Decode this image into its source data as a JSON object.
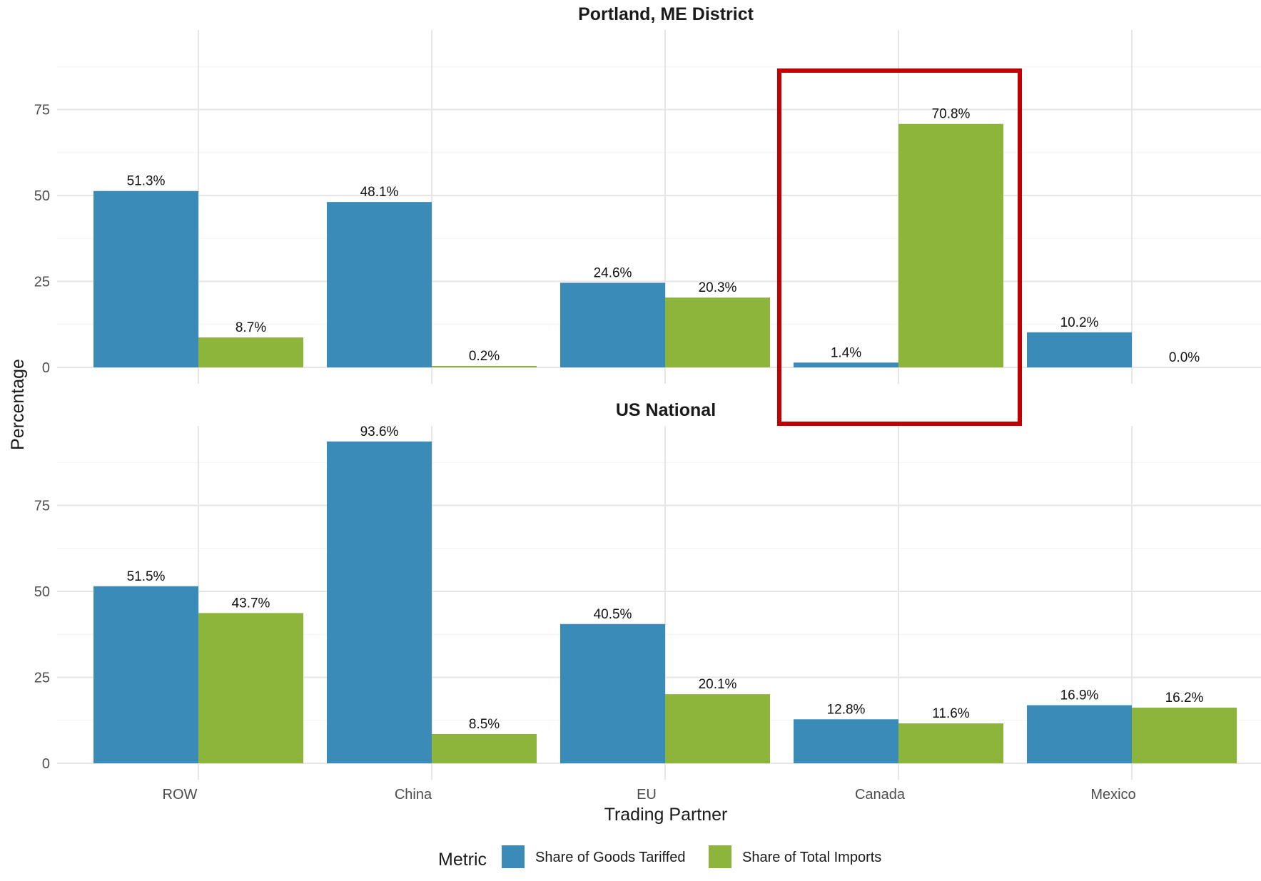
{
  "chart_data": {
    "type": "bar",
    "xlabel": "Trading Partner",
    "ylabel": "Percentage",
    "ylim": [
      0,
      100
    ],
    "yticks": [
      0,
      25,
      50,
      75
    ],
    "categories": [
      "ROW",
      "China",
      "EU",
      "Canada",
      "Mexico"
    ],
    "legend": {
      "title": "Metric",
      "placement": "bottom",
      "entries": [
        "Share of Goods Tariffed",
        "Share of Total Imports"
      ]
    },
    "colors": {
      "Share of Goods Tariffed": "#3a8bb8",
      "Share of Total Imports": "#8db43b",
      "highlight": "#c00000"
    },
    "panels": [
      {
        "title": "Portland, ME District",
        "series": [
          {
            "name": "Share of Goods Tariffed",
            "values": [
              51.3,
              48.1,
              24.6,
              1.4,
              10.2
            ],
            "labels": [
              "51.3%",
              "48.1%",
              "24.6%",
              "1.4%",
              "10.2%"
            ]
          },
          {
            "name": "Share of Total Imports",
            "values": [
              8.7,
              0.2,
              20.3,
              70.8,
              0.0
            ],
            "labels": [
              "8.7%",
              "0.2%",
              "20.3%",
              "70.8%",
              "0.0%"
            ]
          }
        ]
      },
      {
        "title": "US National",
        "series": [
          {
            "name": "Share of Goods Tariffed",
            "values": [
              51.5,
              93.6,
              40.5,
              12.8,
              16.9
            ],
            "labels": [
              "51.5%",
              "93.6%",
              "40.5%",
              "12.8%",
              "16.9%"
            ]
          },
          {
            "name": "Share of Total Imports",
            "values": [
              43.7,
              8.5,
              20.1,
              11.6,
              16.2
            ],
            "labels": [
              "43.7%",
              "8.5%",
              "20.1%",
              "11.6%",
              "16.2%"
            ]
          }
        ]
      }
    ],
    "highlight_category": "Canada"
  }
}
